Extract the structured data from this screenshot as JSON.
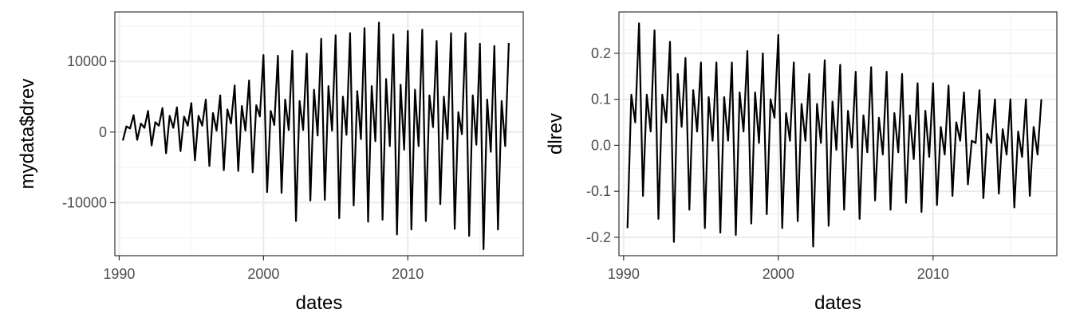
{
  "chart_data": [
    {
      "type": "line",
      "xlabel": "dates",
      "ylabel": "mydata$drev",
      "xlim": [
        1989.7,
        2018.0
      ],
      "ylim": [
        -17500,
        17000
      ],
      "x_ticks": [
        1990,
        2000,
        2010
      ],
      "x_tick_labels": [
        "1990",
        "2000",
        "2010"
      ],
      "y_ticks": [
        -10000,
        0,
        10000
      ],
      "y_tick_labels": [
        "-10000",
        "0",
        "10000"
      ],
      "grid": true,
      "x": [
        1990.25,
        1990.5,
        1990.75,
        1991.0,
        1991.25,
        1991.5,
        1991.75,
        1992.0,
        1992.25,
        1992.5,
        1992.75,
        1993.0,
        1993.25,
        1993.5,
        1993.75,
        1994.0,
        1994.25,
        1994.5,
        1994.75,
        1995.0,
        1995.25,
        1995.5,
        1995.75,
        1996.0,
        1996.25,
        1996.5,
        1996.75,
        1997.0,
        1997.25,
        1997.5,
        1997.75,
        1998.0,
        1998.25,
        1998.5,
        1998.75,
        1999.0,
        1999.25,
        1999.5,
        1999.75,
        2000.0,
        2000.25,
        2000.5,
        2000.75,
        2001.0,
        2001.25,
        2001.5,
        2001.75,
        2002.0,
        2002.25,
        2002.5,
        2002.75,
        2003.0,
        2003.25,
        2003.5,
        2003.75,
        2004.0,
        2004.25,
        2004.5,
        2004.75,
        2005.0,
        2005.25,
        2005.5,
        2005.75,
        2006.0,
        2006.25,
        2006.5,
        2006.75,
        2007.0,
        2007.25,
        2007.5,
        2007.75,
        2008.0,
        2008.25,
        2008.5,
        2008.75,
        2009.0,
        2009.25,
        2009.5,
        2009.75,
        2010.0,
        2010.25,
        2010.5,
        2010.75,
        2011.0,
        2011.25,
        2011.5,
        2011.75,
        2012.0,
        2012.25,
        2012.5,
        2012.75,
        2013.0,
        2013.25,
        2013.5,
        2013.75,
        2014.0,
        2014.25,
        2014.5,
        2014.75,
        2015.0,
        2015.25,
        2015.5,
        2015.75,
        2016.0,
        2016.25,
        2016.5,
        2016.75,
        2017.0
      ],
      "series": [
        {
          "color": "#000000",
          "values": [
            -1200,
            800,
            500,
            2400,
            -1100,
            1200,
            600,
            3000,
            -1900,
            1400,
            900,
            3400,
            -3000,
            2300,
            600,
            3500,
            -2700,
            2200,
            900,
            4100,
            -4000,
            2300,
            900,
            4600,
            -4800,
            2700,
            200,
            5200,
            -5400,
            3200,
            1200,
            6600,
            -5500,
            3700,
            200,
            7300,
            -5700,
            3800,
            2200,
            10900,
            -8500,
            3000,
            1000,
            10800,
            -8600,
            4600,
            300,
            11500,
            -12600,
            4400,
            300,
            11100,
            -9700,
            6000,
            -500,
            13200,
            -9600,
            6500,
            200,
            13700,
            -12200,
            5000,
            -400,
            14000,
            -10400,
            5800,
            -1000,
            14700,
            -12700,
            6500,
            -1300,
            15500,
            -12400,
            7500,
            -2000,
            13800,
            -14500,
            6700,
            -2500,
            14300,
            -13800,
            6000,
            -2000,
            14500,
            -12600,
            5200,
            700,
            12900,
            -10200,
            5000,
            -1000,
            14000,
            -13700,
            2800,
            -300,
            14000,
            -14700,
            5200,
            -1800,
            12500,
            -16600,
            4600,
            -2800,
            12200,
            -13800,
            4400,
            -2000,
            12600
          ]
        }
      ]
    },
    {
      "type": "line",
      "xlabel": "dates",
      "ylabel": "dlrev",
      "xlim": [
        1989.7,
        2018.0
      ],
      "ylim": [
        -0.24,
        0.29
      ],
      "x_ticks": [
        1990,
        2000,
        2010
      ],
      "x_tick_labels": [
        "1990",
        "2000",
        "2010"
      ],
      "y_ticks": [
        -0.2,
        -0.1,
        0.0,
        0.1,
        0.2
      ],
      "y_tick_labels": [
        "-0.2",
        "-0.1",
        "0.0",
        "0.1",
        "0.2"
      ],
      "grid": true,
      "x": [
        1990.25,
        1990.5,
        1990.75,
        1991.0,
        1991.25,
        1991.5,
        1991.75,
        1992.0,
        1992.25,
        1992.5,
        1992.75,
        1993.0,
        1993.25,
        1993.5,
        1993.75,
        1994.0,
        1994.25,
        1994.5,
        1994.75,
        1995.0,
        1995.25,
        1995.5,
        1995.75,
        1996.0,
        1996.25,
        1996.5,
        1996.75,
        1997.0,
        1997.25,
        1997.5,
        1997.75,
        1998.0,
        1998.25,
        1998.5,
        1998.75,
        1999.0,
        1999.25,
        1999.5,
        1999.75,
        2000.0,
        2000.25,
        2000.5,
        2000.75,
        2001.0,
        2001.25,
        2001.5,
        2001.75,
        2002.0,
        2002.25,
        2002.5,
        2002.75,
        2003.0,
        2003.25,
        2003.5,
        2003.75,
        2004.0,
        2004.25,
        2004.5,
        2004.75,
        2005.0,
        2005.25,
        2005.5,
        2005.75,
        2006.0,
        2006.25,
        2006.5,
        2006.75,
        2007.0,
        2007.25,
        2007.5,
        2007.75,
        2008.0,
        2008.25,
        2008.5,
        2008.75,
        2009.0,
        2009.25,
        2009.5,
        2009.75,
        2010.0,
        2010.25,
        2010.5,
        2010.75,
        2011.0,
        2011.25,
        2011.5,
        2011.75,
        2012.0,
        2012.25,
        2012.5,
        2012.75,
        2013.0,
        2013.25,
        2013.5,
        2013.75,
        2014.0,
        2014.25,
        2014.5,
        2014.75,
        2015.0,
        2015.25,
        2015.5,
        2015.75,
        2016.0,
        2016.25,
        2016.5,
        2016.75,
        2017.0
      ],
      "series": [
        {
          "color": "#000000",
          "values": [
            -0.18,
            0.11,
            0.05,
            0.265,
            -0.11,
            0.11,
            0.03,
            0.25,
            -0.16,
            0.11,
            0.05,
            0.225,
            -0.21,
            0.155,
            0.04,
            0.19,
            -0.14,
            0.12,
            0.03,
            0.18,
            -0.18,
            0.105,
            0.01,
            0.18,
            -0.19,
            0.105,
            0.01,
            0.18,
            -0.195,
            0.115,
            0.03,
            0.205,
            -0.17,
            0.115,
            0.005,
            0.2,
            -0.15,
            0.1,
            0.06,
            0.24,
            -0.18,
            0.07,
            0.01,
            0.18,
            -0.165,
            0.09,
            0.01,
            0.155,
            -0.22,
            0.09,
            0.005,
            0.185,
            -0.175,
            0.095,
            -0.01,
            0.175,
            -0.14,
            0.075,
            -0.005,
            0.16,
            -0.16,
            0.065,
            -0.015,
            0.17,
            -0.12,
            0.06,
            -0.02,
            0.16,
            -0.14,
            0.07,
            -0.015,
            0.155,
            -0.125,
            0.065,
            -0.03,
            0.135,
            -0.145,
            0.075,
            -0.025,
            0.135,
            -0.13,
            0.04,
            -0.02,
            0.13,
            -0.11,
            0.05,
            0.01,
            0.115,
            -0.085,
            0.01,
            0.005,
            0.12,
            -0.115,
            0.025,
            0.005,
            0.1,
            -0.105,
            0.035,
            -0.02,
            0.1,
            -0.135,
            0.03,
            -0.025,
            0.1,
            -0.11,
            0.04,
            -0.02,
            0.1
          ]
        }
      ]
    }
  ]
}
